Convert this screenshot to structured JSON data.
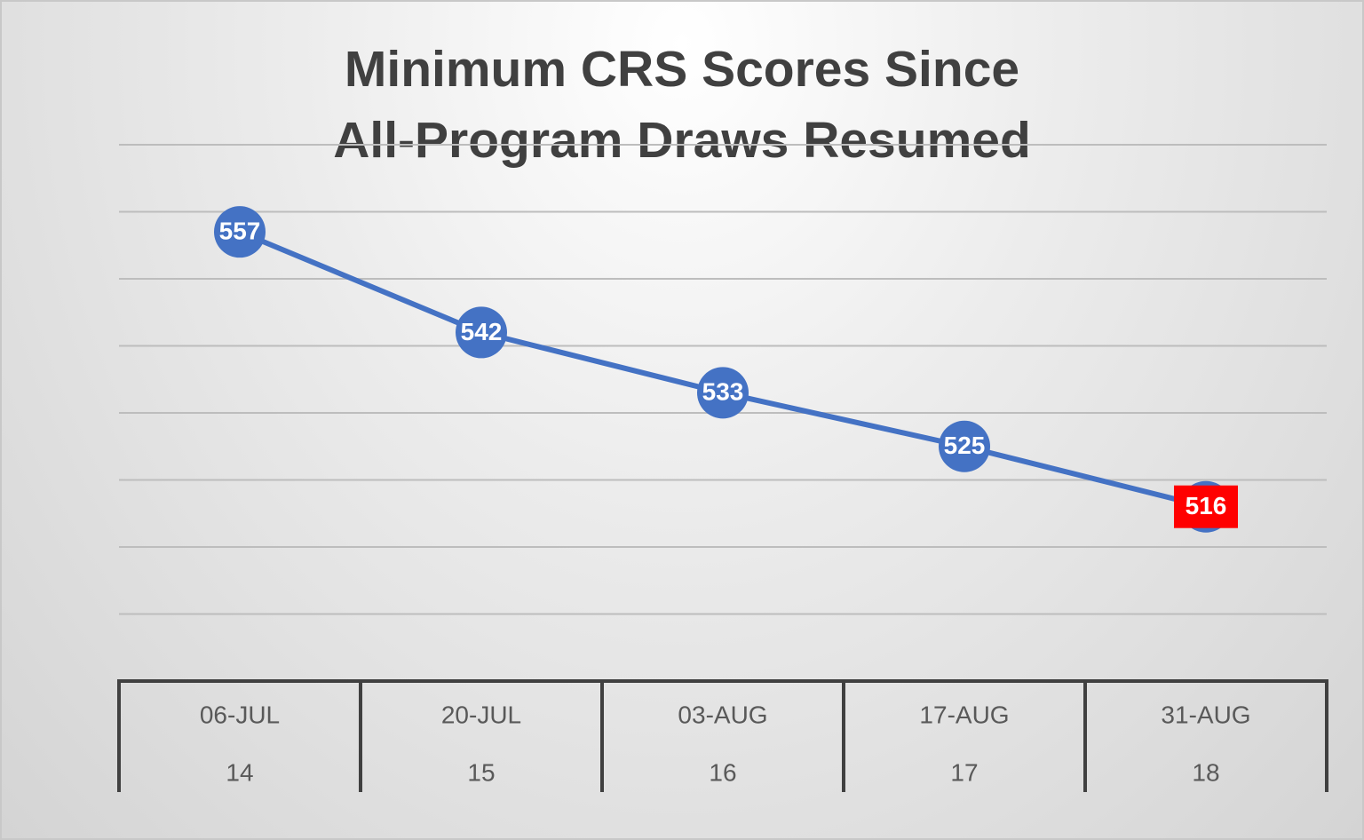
{
  "chart_data": {
    "type": "line",
    "title": "Minimum CRS Scores Since All-Program Draws Resumed",
    "categories": [
      "06-JUL",
      "20-JUL",
      "03-AUG",
      "17-AUG",
      "31-AUG"
    ],
    "draw_numbers": [
      14,
      15,
      16,
      17,
      18
    ],
    "series": [
      {
        "color": "#4472c4",
        "values": [
          557,
          542,
          533,
          525,
          516
        ],
        "label_backgrounds": [
          "#4472c4",
          "#4472c4",
          "#4472c4",
          "#4472c4",
          "#ff0000"
        ]
      }
    ],
    "ylim": [
      490,
      570
    ],
    "yticks": [
      500,
      510,
      520,
      530,
      540,
      550,
      560,
      570
    ],
    "grid": true
  }
}
